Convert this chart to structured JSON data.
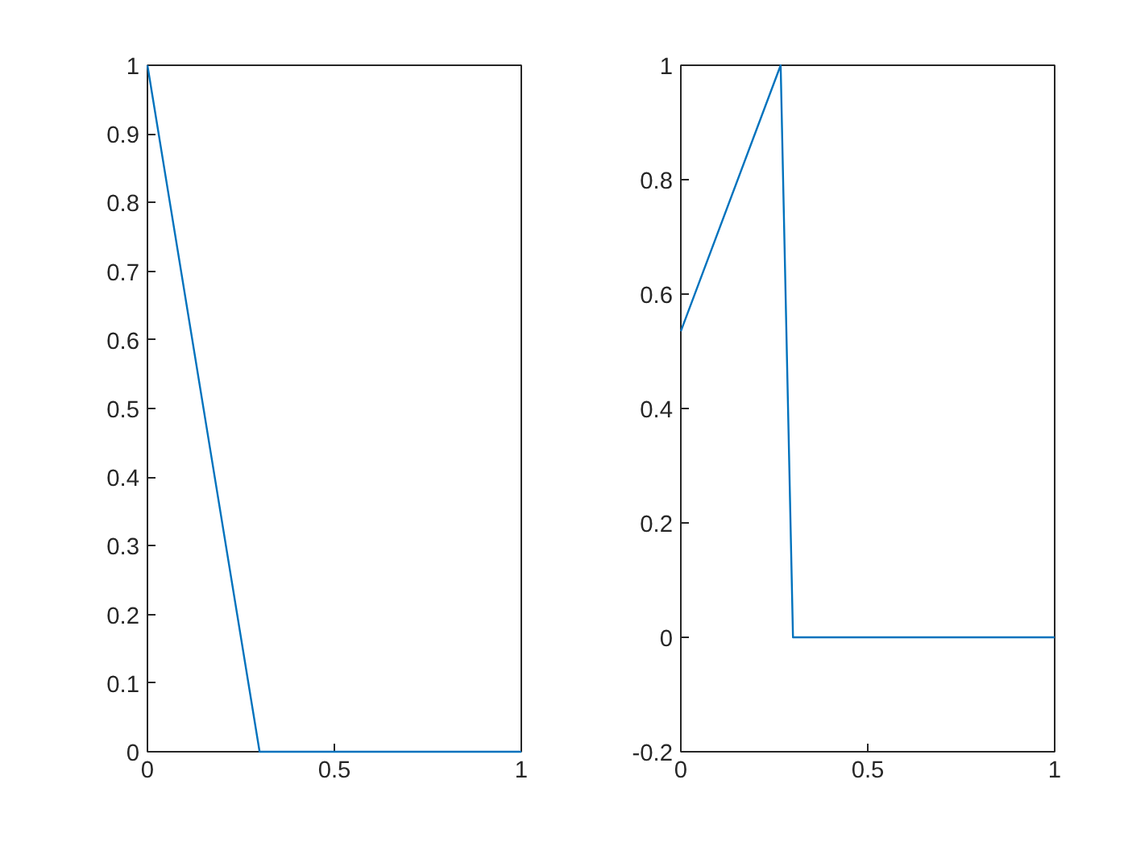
{
  "chart_data": [
    {
      "type": "line",
      "x": [
        0,
        0.3,
        1
      ],
      "values": [
        1,
        0,
        0
      ],
      "color": "#0072bd",
      "xlim": [
        0,
        1
      ],
      "ylim": [
        0,
        1
      ],
      "xticks": [
        0,
        0.5,
        1
      ],
      "yticks": [
        0,
        0.1,
        0.2,
        0.3,
        0.4,
        0.5,
        0.6,
        0.7,
        0.8,
        0.9,
        1
      ],
      "grid": false
    },
    {
      "type": "line",
      "x": [
        0,
        0.267,
        0.3,
        1
      ],
      "values": [
        0.535,
        1,
        0,
        0
      ],
      "color": "#0072bd",
      "xlim": [
        0,
        1
      ],
      "ylim": [
        -0.2,
        1
      ],
      "xticks": [
        0,
        0.5,
        1
      ],
      "yticks": [
        -0.2,
        0,
        0.2,
        0.4,
        0.6,
        0.8,
        1
      ],
      "grid": false
    }
  ]
}
